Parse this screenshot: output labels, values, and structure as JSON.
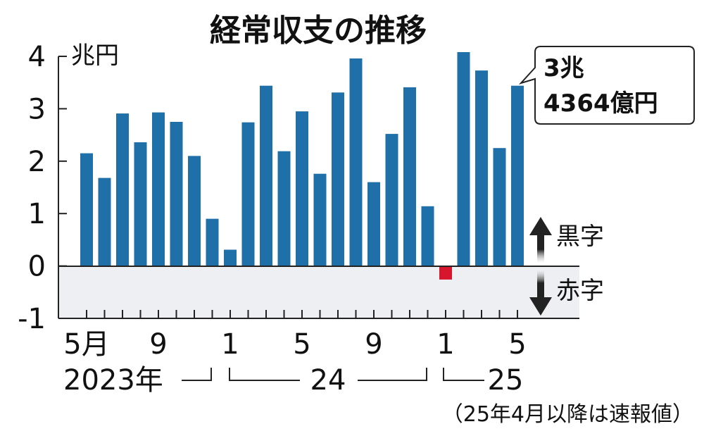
{
  "chart_data": {
    "type": "bar",
    "title": "経常収支の推移",
    "unit_label": "兆円",
    "ylim": [
      -1,
      4
    ],
    "yticks": [
      "-1",
      "0",
      "1",
      "2",
      "3",
      "4"
    ],
    "categories": [
      "2023-05",
      "2023-06",
      "2023-07",
      "2023-08",
      "2023-09",
      "2023-10",
      "2023-11",
      "2023-12",
      "2024-01",
      "2024-02",
      "2024-03",
      "2024-04",
      "2024-05",
      "2024-06",
      "2024-07",
      "2024-08",
      "2024-09",
      "2024-10",
      "2024-11",
      "2024-12",
      "2025-01",
      "2025-02",
      "2025-03",
      "2025-04",
      "2025-05"
    ],
    "values": [
      2.15,
      1.68,
      2.91,
      2.36,
      2.93,
      2.75,
      2.1,
      0.9,
      0.31,
      2.74,
      3.44,
      2.19,
      2.95,
      1.76,
      3.31,
      3.96,
      1.6,
      2.52,
      3.41,
      1.14,
      -0.26,
      4.08,
      3.73,
      2.25,
      3.44
    ],
    "x_tick_labels": [
      {
        "index": 0,
        "label": "5月"
      },
      {
        "index": 4,
        "label": "9"
      },
      {
        "index": 8,
        "label": "1"
      },
      {
        "index": 12,
        "label": "5"
      },
      {
        "index": 16,
        "label": "9"
      },
      {
        "index": 20,
        "label": "1"
      },
      {
        "index": 24,
        "label": "5"
      }
    ],
    "year_labels": [
      "2023年",
      "24",
      "25"
    ],
    "callout": {
      "index": 24,
      "line1": "3兆",
      "line2": "4364億円"
    },
    "surplus_label": "黒字",
    "deficit_label": "赤字",
    "note": "（25年4月以降は速報値）",
    "colors": {
      "positive": "#1f6fa8",
      "negative": "#d7152c",
      "deficit_zone": "#eeeff2",
      "axis": "#222222"
    }
  }
}
